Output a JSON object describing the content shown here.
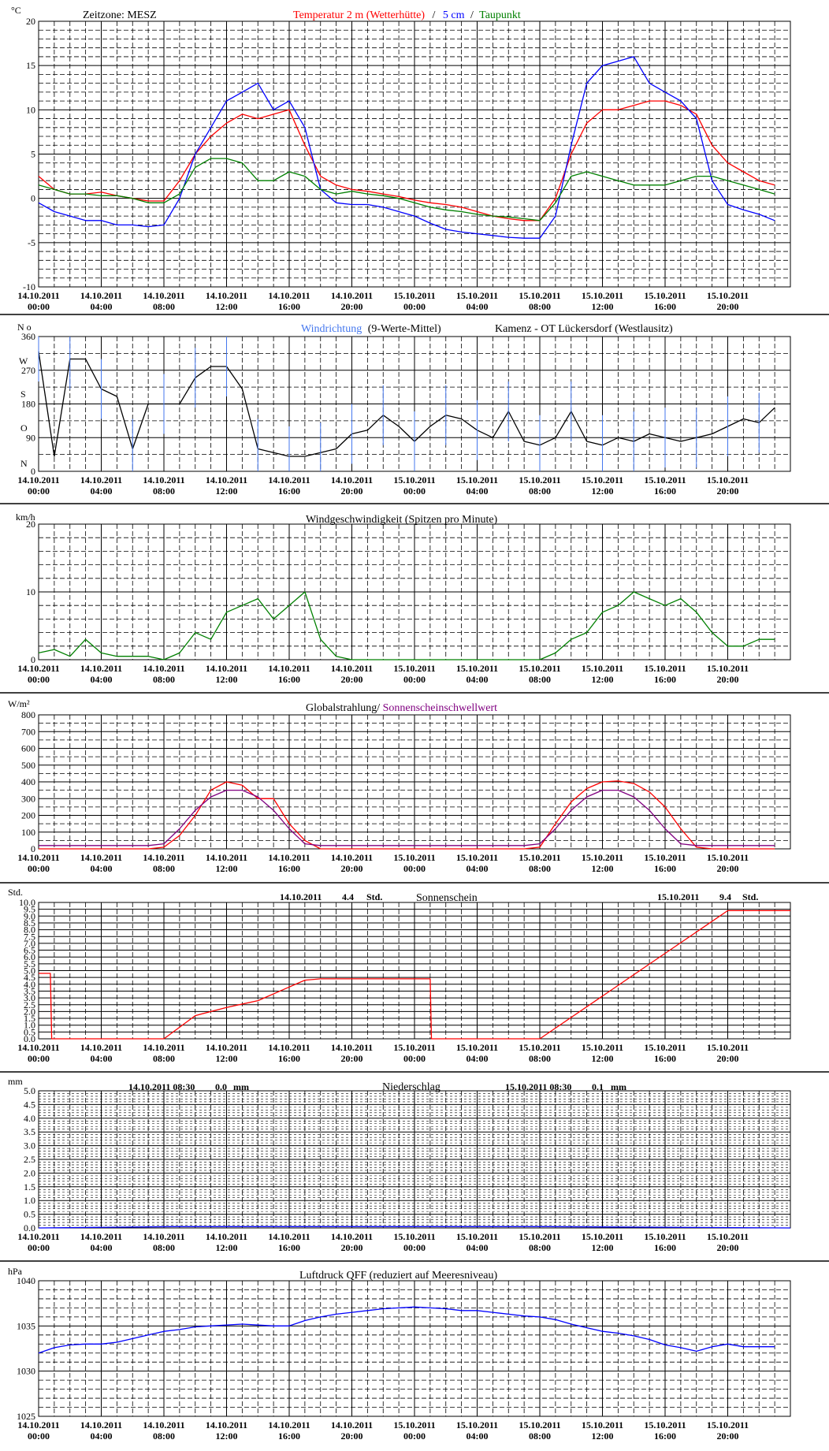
{
  "x_labels": [
    {
      "date": "14.10.2011",
      "time": "00:00"
    },
    {
      "date": "14.10.2011",
      "time": "04:00"
    },
    {
      "date": "14.10.2011",
      "time": "08:00"
    },
    {
      "date": "14.10.2011",
      "time": "12:00"
    },
    {
      "date": "14.10.2011",
      "time": "16:00"
    },
    {
      "date": "14.10.2011",
      "time": "20:00"
    },
    {
      "date": "15.10.2011",
      "time": "00:00"
    },
    {
      "date": "15.10.2011",
      "time": "04:00"
    },
    {
      "date": "15.10.2011",
      "time": "08:00"
    },
    {
      "date": "15.10.2011",
      "time": "12:00"
    },
    {
      "date": "15.10.2011",
      "time": "16:00"
    },
    {
      "date": "15.10.2011",
      "time": "20:00"
    }
  ],
  "panels": {
    "temperature": {
      "unit": "°C",
      "zone": "Zeitzone: MESZ",
      "title_red": "Temperatur 2 m (Wetterhütte)",
      "title_sep": "/",
      "title_blue": "5 cm",
      "title_sep2": "/",
      "title_green": "Taupunkt",
      "colors": {
        "t2m": "#ff0000",
        "t5cm": "#0000ff",
        "dew": "#008000"
      }
    },
    "wind_dir": {
      "unit": "N o",
      "title_blue": "Windrichtung",
      "title_rest": "(9-Werte-Mittel)",
      "station": "Kamenz - OT Lückersdorf (Westlausitz)",
      "left_labels": [
        "N",
        "O",
        "S",
        "W",
        "N"
      ],
      "colors": {
        "dir": "#4477ee",
        "mean": "#000000"
      }
    },
    "wind_speed": {
      "unit": "km/h",
      "title": "Windgeschwindigkeit (Spitzen pro Minute)",
      "color": "#008000"
    },
    "radiation": {
      "unit": "W/m²",
      "title_black": "Globalstrahlung/",
      "title_purple": "Sonnenscheinschwellwert",
      "colors": {
        "global": "#ff0000",
        "threshold": "#800080"
      }
    },
    "sunshine": {
      "unit": "Std.",
      "title": "Sonnenschein",
      "day1": {
        "date": "14.10.2011",
        "value": "4.4",
        "unit": "Std."
      },
      "day2": {
        "date": "15.10.2011",
        "value": "9.4",
        "unit": "Std."
      },
      "color": "#ff0000"
    },
    "precip": {
      "unit": "mm",
      "title": "Niederschlag",
      "day1": {
        "date": "14.10.2011 08:30",
        "value": "0.0",
        "unit": "mm"
      },
      "day2": {
        "date": "15.10.2011 08:30",
        "value": "0.1",
        "unit": "mm"
      },
      "color": "#0000ff"
    },
    "pressure": {
      "unit": "hPa",
      "title": "Luftdruck QFF (reduziert auf Meeresniveau)",
      "color": "#0000ff"
    }
  },
  "chart_data": [
    {
      "type": "line",
      "x_hours": [
        0,
        1,
        2,
        3,
        4,
        5,
        6,
        7,
        8,
        9,
        10,
        11,
        12,
        13,
        14,
        15,
        16,
        17,
        18,
        19,
        20,
        21,
        22,
        23,
        24,
        25,
        26,
        27,
        28,
        29,
        30,
        31,
        32,
        33,
        34,
        35,
        36,
        37,
        38,
        39,
        40,
        41,
        42,
        43,
        44,
        45,
        46,
        47
      ],
      "ylim": [
        -10,
        20
      ],
      "yticks": [
        -10,
        -5,
        0,
        5,
        10,
        15,
        20
      ],
      "series": [
        {
          "key": "t2m",
          "values": [
            2.5,
            1,
            0.5,
            0.5,
            0.7,
            0.3,
            0,
            -0.3,
            -0.3,
            2,
            5,
            7,
            8.5,
            9.5,
            9,
            9.5,
            10,
            6,
            2.5,
            1.5,
            1,
            0.8,
            0.5,
            0.2,
            -0.2,
            -0.5,
            -0.7,
            -1,
            -1.5,
            -2,
            -2.3,
            -2.5,
            -2.5,
            0,
            5,
            8.5,
            10,
            10,
            10.5,
            11,
            11,
            10.5,
            9.5,
            6,
            4,
            3,
            2,
            1.5
          ]
        },
        {
          "key": "t5cm",
          "values": [
            -0.5,
            -1.5,
            -2,
            -2.5,
            -2.5,
            -3,
            -3,
            -3.2,
            -3,
            0,
            5,
            8,
            11,
            12,
            13,
            10,
            11,
            8,
            1,
            -0.5,
            -0.7,
            -0.7,
            -1,
            -1.5,
            -2,
            -2.8,
            -3.5,
            -3.8,
            -4,
            -4.2,
            -4.4,
            -4.5,
            -4.5,
            -2,
            6,
            13,
            15,
            15.5,
            16,
            13,
            12,
            11,
            9,
            2,
            -0.7,
            -1.3,
            -1.8,
            -2.5
          ]
        },
        {
          "key": "dew",
          "values": [
            1.5,
            1,
            0.5,
            0.5,
            0.3,
            0.3,
            0,
            -0.5,
            -0.5,
            0.5,
            3.5,
            4.5,
            4.5,
            4,
            2,
            2,
            3,
            2.5,
            1,
            0.5,
            0.8,
            0.5,
            0.3,
            0,
            -0.5,
            -1,
            -1.3,
            -1.5,
            -1.8,
            -2,
            -2.1,
            -2.3,
            -2.5,
            -0.5,
            2.5,
            3,
            2.5,
            2,
            1.5,
            1.5,
            1.5,
            2,
            2.5,
            2.5,
            2,
            1.5,
            1,
            0.5
          ]
        }
      ]
    },
    {
      "type": "line",
      "x_hours": [
        0,
        1,
        2,
        3,
        4,
        5,
        6,
        7,
        8,
        9,
        10,
        11,
        12,
        13,
        14,
        15,
        16,
        17,
        18,
        19,
        20,
        21,
        22,
        23,
        24,
        25,
        26,
        27,
        28,
        29,
        30,
        31,
        32,
        33,
        34,
        35,
        36,
        37,
        38,
        39,
        40,
        41,
        42,
        43,
        44,
        45,
        46,
        47
      ],
      "ylim": [
        0,
        360
      ],
      "yticks": [
        0,
        90,
        180,
        270,
        360
      ],
      "series": [
        {
          "key": "mean",
          "values": [
            320,
            40,
            300,
            300,
            220,
            200,
            60,
            180,
            180,
            180,
            250,
            280,
            280,
            220,
            60,
            50,
            40,
            40,
            50,
            60,
            100,
            110,
            150,
            120,
            80,
            120,
            150,
            140,
            110,
            90,
            160,
            80,
            70,
            90,
            160,
            80,
            70,
            90,
            80,
            100,
            90,
            80,
            90,
            100,
            120,
            140,
            130,
            170
          ]
        }
      ]
    },
    {
      "type": "line",
      "x_hours": [
        0,
        1,
        2,
        3,
        4,
        5,
        6,
        7,
        8,
        9,
        10,
        11,
        12,
        13,
        14,
        15,
        16,
        17,
        18,
        19,
        20,
        21,
        22,
        23,
        24,
        25,
        26,
        27,
        28,
        29,
        30,
        31,
        32,
        33,
        34,
        35,
        36,
        37,
        38,
        39,
        40,
        41,
        42,
        43,
        44,
        45,
        46,
        47
      ],
      "ylim": [
        0,
        20
      ],
      "yticks": [
        0,
        10,
        20
      ],
      "series": [
        {
          "key": "wind",
          "values": [
            1,
            1.5,
            0.5,
            3,
            1,
            0.5,
            0.5,
            0.5,
            0,
            1,
            4,
            3,
            7,
            8,
            9,
            6,
            8,
            10,
            3,
            0.5,
            0,
            0,
            0,
            0,
            0,
            0,
            0,
            0,
            0,
            0,
            0,
            0,
            0,
            1,
            3,
            4,
            7,
            8,
            10,
            9,
            8,
            9,
            7,
            4,
            2,
            2,
            3,
            3
          ]
        }
      ]
    },
    {
      "type": "line",
      "x_hours": [
        0,
        1,
        2,
        3,
        4,
        5,
        6,
        7,
        8,
        9,
        10,
        11,
        12,
        13,
        14,
        15,
        16,
        17,
        18,
        19,
        20,
        21,
        22,
        23,
        24,
        25,
        26,
        27,
        28,
        29,
        30,
        31,
        32,
        33,
        34,
        35,
        36,
        37,
        38,
        39,
        40,
        41,
        42,
        43,
        44,
        45,
        46,
        47
      ],
      "ylim": [
        0,
        800
      ],
      "yticks": [
        0,
        100,
        200,
        300,
        400,
        500,
        600,
        700,
        800
      ],
      "series": [
        {
          "key": "global",
          "values": [
            0,
            0,
            0,
            0,
            0,
            0,
            0,
            0,
            10,
            80,
            200,
            350,
            400,
            380,
            300,
            300,
            150,
            50,
            0,
            0,
            0,
            0,
            0,
            0,
            0,
            0,
            0,
            0,
            0,
            0,
            0,
            0,
            10,
            150,
            280,
            360,
            400,
            405,
            390,
            340,
            250,
            120,
            10,
            0,
            0,
            0,
            0,
            0
          ]
        },
        {
          "key": "threshold",
          "values": [
            20,
            20,
            20,
            20,
            20,
            20,
            20,
            20,
            30,
            120,
            230,
            310,
            350,
            350,
            310,
            230,
            120,
            30,
            20,
            20,
            20,
            20,
            20,
            20,
            20,
            20,
            20,
            20,
            20,
            20,
            20,
            20,
            30,
            120,
            230,
            310,
            350,
            350,
            310,
            230,
            120,
            30,
            20,
            20,
            20,
            20,
            20,
            20
          ]
        }
      ]
    },
    {
      "type": "line",
      "x": [
        "00:00",
        "00:45",
        "00:50",
        "08:00",
        "10:00",
        "12:00",
        "14:00",
        "16:00",
        "17:00",
        "18:00",
        "25:00",
        "25:05",
        "32:00",
        "44:00",
        "48:00"
      ],
      "ylim": [
        0,
        10
      ],
      "yticks": [
        0,
        0.5,
        1,
        1.5,
        2,
        2.5,
        3,
        3.5,
        4,
        4.5,
        5,
        5.5,
        6,
        6.5,
        7,
        7.5,
        8,
        8.5,
        9,
        9.5,
        10
      ],
      "series": [
        {
          "key": "sun",
          "values": [
            4.8,
            4.8,
            0,
            0,
            1.7,
            2.3,
            2.8,
            3.8,
            4.3,
            4.4,
            4.4,
            0,
            0,
            9.4,
            9.4
          ]
        }
      ]
    },
    {
      "type": "line",
      "x": [
        "00:00",
        "08:30",
        "32:30",
        "48:00"
      ],
      "ylim": [
        0,
        5
      ],
      "yticks": [
        0,
        0.5,
        1,
        1.5,
        2,
        2.5,
        3,
        3.5,
        4,
        4.5,
        5
      ],
      "series": [
        {
          "key": "rain",
          "values": [
            0,
            0.05,
            0.05,
            0
          ]
        }
      ]
    },
    {
      "type": "line",
      "x_hours": [
        0,
        1,
        2,
        3,
        4,
        5,
        6,
        7,
        8,
        9,
        10,
        11,
        12,
        13,
        14,
        15,
        16,
        17,
        18,
        19,
        20,
        21,
        22,
        23,
        24,
        25,
        26,
        27,
        28,
        29,
        30,
        31,
        32,
        33,
        34,
        35,
        36,
        37,
        38,
        39,
        40,
        41,
        42,
        43,
        44,
        45,
        46,
        47
      ],
      "ylim": [
        1025,
        1040
      ],
      "yticks": [
        1025,
        1030,
        1035,
        1040
      ],
      "series": [
        {
          "key": "qff",
          "values": [
            1032,
            1032.6,
            1032.9,
            1033,
            1033,
            1033.2,
            1033.6,
            1034,
            1034.4,
            1034.6,
            1034.9,
            1035,
            1035.1,
            1035.2,
            1035.1,
            1035,
            1035,
            1035.6,
            1036,
            1036.3,
            1036.5,
            1036.7,
            1036.9,
            1037,
            1037.1,
            1037,
            1036.9,
            1036.7,
            1036.7,
            1036.5,
            1036.3,
            1036.1,
            1036,
            1035.7,
            1035.2,
            1034.8,
            1034.4,
            1034.2,
            1033.9,
            1033.5,
            1032.9,
            1032.6,
            1032.2,
            1032.7,
            1033,
            1032.7,
            1032.7,
            1032.7
          ]
        }
      ]
    }
  ]
}
